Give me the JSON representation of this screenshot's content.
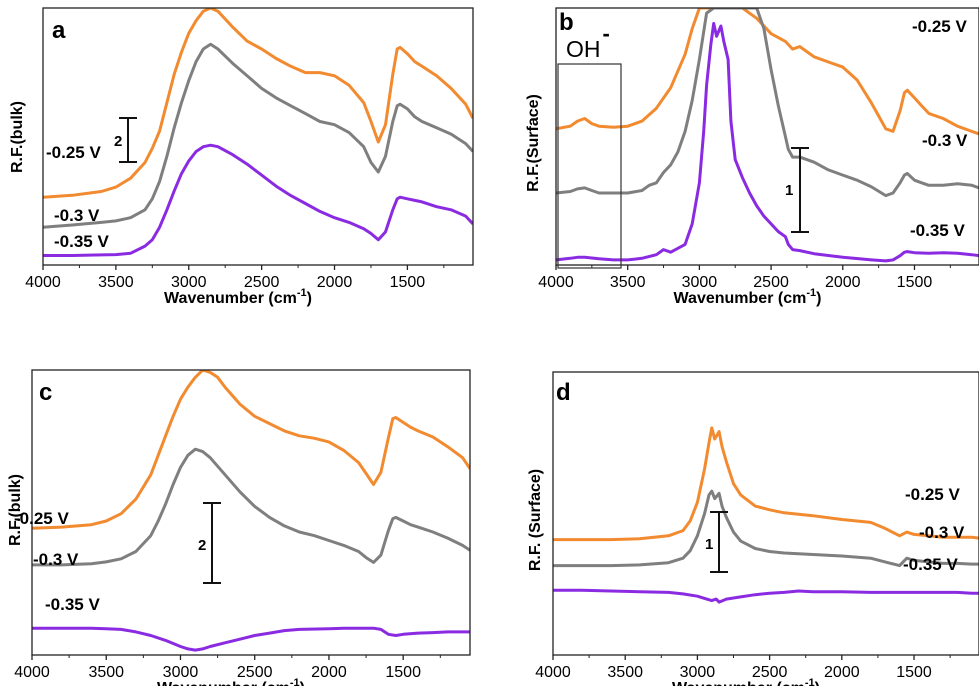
{
  "chart_data": [
    {
      "panel": "a",
      "type": "line",
      "xlabel": "Wavenumber (cm",
      "xlabel_sup": "-1",
      "xlabel_close": ")",
      "ylabel": "R.F.(bulk)",
      "xlim": [
        4000,
        1050
      ],
      "x_reversed": true,
      "xticks": [
        "4000",
        "3500",
        "3000",
        "2500",
        "2000",
        "1500"
      ],
      "scale_bar": "2",
      "series": [
        {
          "name": "-0.25 V",
          "color": "#F28A30",
          "x": [
            4000,
            3800,
            3600,
            3500,
            3400,
            3300,
            3250,
            3200,
            3150,
            3100,
            3050,
            3000,
            2950,
            2900,
            2850,
            2800,
            2700,
            2600,
            2500,
            2400,
            2300,
            2200,
            2100,
            2000,
            1900,
            1800,
            1750,
            1700,
            1650,
            1600,
            1570,
            1550,
            1500,
            1450,
            1400,
            1300,
            1200,
            1100,
            1050
          ],
          "y": [
            0.0,
            0.06,
            0.18,
            0.32,
            0.6,
            1.1,
            1.55,
            2.1,
            3.0,
            3.9,
            4.6,
            5.2,
            5.6,
            5.9,
            6.0,
            5.9,
            5.4,
            4.95,
            4.7,
            4.4,
            4.15,
            3.95,
            3.95,
            3.85,
            3.55,
            3.0,
            2.4,
            1.75,
            2.3,
            3.9,
            4.7,
            4.75,
            4.55,
            4.3,
            4.15,
            3.85,
            3.45,
            2.95,
            2.5
          ]
        },
        {
          "name": "-0.3 V",
          "color": "#7F7F7F",
          "x": [
            4000,
            3800,
            3600,
            3500,
            3400,
            3300,
            3250,
            3200,
            3150,
            3100,
            3050,
            3000,
            2950,
            2900,
            2850,
            2800,
            2700,
            2600,
            2500,
            2400,
            2300,
            2200,
            2100,
            2000,
            1900,
            1800,
            1750,
            1700,
            1650,
            1600,
            1570,
            1550,
            1500,
            1450,
            1400,
            1300,
            1200,
            1100,
            1050
          ],
          "y": [
            -0.95,
            -0.88,
            -0.8,
            -0.75,
            -0.65,
            -0.4,
            -0.05,
            0.5,
            1.3,
            2.2,
            3.0,
            3.7,
            4.3,
            4.7,
            4.85,
            4.7,
            4.25,
            3.85,
            3.45,
            3.15,
            2.9,
            2.65,
            2.4,
            2.3,
            2.05,
            1.6,
            1.1,
            0.8,
            1.3,
            2.4,
            2.9,
            2.95,
            2.8,
            2.55,
            2.4,
            2.2,
            2.0,
            1.7,
            1.45
          ]
        },
        {
          "name": "-0.35 V",
          "color": "#8A2BE2",
          "x": [
            4000,
            3800,
            3600,
            3500,
            3400,
            3300,
            3250,
            3200,
            3150,
            3100,
            3050,
            3000,
            2950,
            2900,
            2850,
            2800,
            2700,
            2600,
            2500,
            2400,
            2300,
            2200,
            2100,
            2000,
            1900,
            1800,
            1750,
            1700,
            1650,
            1600,
            1570,
            1550,
            1500,
            1450,
            1400,
            1300,
            1200,
            1100,
            1050
          ],
          "y": [
            -1.85,
            -1.85,
            -1.83,
            -1.82,
            -1.78,
            -1.55,
            -1.35,
            -0.95,
            -0.4,
            0.2,
            0.75,
            1.15,
            1.45,
            1.6,
            1.65,
            1.6,
            1.35,
            1.05,
            0.7,
            0.35,
            0.05,
            -0.2,
            -0.45,
            -0.65,
            -0.8,
            -1.0,
            -1.15,
            -1.35,
            -1.1,
            -0.4,
            -0.05,
            0.0,
            -0.05,
            -0.1,
            -0.15,
            -0.3,
            -0.4,
            -0.6,
            -0.85
          ]
        }
      ],
      "ylim": [
        -2.15,
        6.0
      ]
    },
    {
      "panel": "b",
      "type": "line",
      "xlabel": "Wavenumber (cm",
      "xlabel_sup": "-1",
      "xlabel_close": ")",
      "ylabel": "R.F.(Surface)",
      "xlim": [
        4000,
        1050
      ],
      "x_reversed": true,
      "xticks": [
        "4000",
        "3500",
        "3000",
        "2500",
        "2000",
        "1500"
      ],
      "scale_bar": "1",
      "annotation": "OH",
      "annotation_sup": "-",
      "series": [
        {
          "name": "-0.25 V",
          "color": "#F28A30",
          "x": [
            4000,
            3900,
            3850,
            3800,
            3750,
            3700,
            3600,
            3500,
            3400,
            3300,
            3200,
            3100,
            3050,
            3000,
            2900,
            2700,
            2600,
            2500,
            2400,
            2350,
            2300,
            2200,
            2100,
            2000,
            1900,
            1800,
            1700,
            1650,
            1600,
            1570,
            1550,
            1500,
            1450,
            1400,
            1300,
            1200,
            1100,
            1050
          ],
          "y": [
            1.25,
            1.3,
            1.4,
            1.45,
            1.35,
            1.3,
            1.28,
            1.3,
            1.4,
            1.65,
            2.05,
            2.7,
            3.2,
            3.6,
            3.6,
            3.6,
            3.4,
            3.1,
            2.95,
            2.8,
            2.85,
            2.65,
            2.55,
            2.45,
            2.2,
            1.75,
            1.25,
            1.2,
            1.6,
            1.95,
            2.0,
            1.85,
            1.7,
            1.55,
            1.45,
            1.3,
            1.2,
            1.15
          ]
        },
        {
          "name": "-0.3 V",
          "color": "#7F7F7F",
          "x": [
            4000,
            3900,
            3850,
            3800,
            3750,
            3700,
            3600,
            3500,
            3400,
            3350,
            3300,
            3250,
            3200,
            3150,
            3100,
            3050,
            3000,
            2950,
            2900,
            2600,
            2550,
            2500,
            2450,
            2400,
            2380,
            2350,
            2300,
            2200,
            2100,
            2000,
            1900,
            1800,
            1700,
            1650,
            1600,
            1570,
            1550,
            1500,
            1450,
            1400,
            1300,
            1200,
            1100,
            1050
          ],
          "y": [
            0.0,
            0.03,
            0.08,
            0.1,
            0.05,
            0.0,
            0.0,
            0.0,
            0.05,
            0.15,
            0.2,
            0.4,
            0.55,
            0.8,
            1.2,
            1.8,
            2.6,
            3.5,
            3.6,
            3.6,
            3.2,
            2.4,
            1.7,
            1.1,
            0.85,
            0.7,
            0.7,
            0.6,
            0.45,
            0.35,
            0.25,
            0.12,
            -0.05,
            0.0,
            0.2,
            0.35,
            0.38,
            0.25,
            0.2,
            0.15,
            0.15,
            0.18,
            0.15,
            0.1
          ]
        },
        {
          "name": "-0.35 V",
          "color": "#8A2BE2",
          "x": [
            4000,
            3900,
            3850,
            3800,
            3700,
            3600,
            3500,
            3400,
            3300,
            3250,
            3200,
            3100,
            3050,
            3000,
            2970,
            2950,
            2920,
            2900,
            2880,
            2850,
            2830,
            2800,
            2780,
            2750,
            2700,
            2650,
            2600,
            2550,
            2500,
            2450,
            2400,
            2380,
            2350,
            2300,
            2200,
            2000,
            1800,
            1700,
            1650,
            1600,
            1570,
            1550,
            1500,
            1400,
            1300,
            1200,
            1100,
            1050
          ],
          "y": [
            -1.3,
            -1.27,
            -1.25,
            -1.25,
            -1.28,
            -1.3,
            -1.3,
            -1.27,
            -1.2,
            -1.1,
            -1.15,
            -1.0,
            -0.6,
            0.2,
            1.2,
            2.1,
            2.9,
            3.3,
            3.05,
            3.25,
            2.95,
            2.6,
            1.4,
            0.65,
            0.3,
            0.0,
            -0.25,
            -0.45,
            -0.6,
            -0.75,
            -0.85,
            -1.0,
            -1.1,
            -1.12,
            -1.18,
            -1.25,
            -1.3,
            -1.32,
            -1.3,
            -1.22,
            -1.15,
            -1.14,
            -1.16,
            -1.17,
            -1.16,
            -1.17,
            -1.2,
            -1.22
          ]
        }
      ],
      "ylim": [
        -1.4,
        3.6
      ]
    },
    {
      "panel": "c",
      "type": "line",
      "xlabel": "Wavenumber (cm",
      "xlabel_sup": "-1",
      "xlabel_close": ")",
      "ylabel": "R.F.(bulk)",
      "xlim": [
        4000,
        1050
      ],
      "x_reversed": true,
      "xticks": [
        "4000",
        "3500",
        "3000",
        "2500",
        "2000",
        "1500"
      ],
      "scale_bar": "2",
      "series": [
        {
          "name": "-0.25 V",
          "color": "#F28A30",
          "x": [
            4000,
            3800,
            3600,
            3500,
            3400,
            3300,
            3200,
            3150,
            3100,
            3050,
            3000,
            2950,
            2900,
            2850,
            2800,
            2750,
            2700,
            2600,
            2500,
            2400,
            2300,
            2200,
            2100,
            2000,
            1900,
            1800,
            1750,
            1700,
            1650,
            1600,
            1570,
            1550,
            1500,
            1450,
            1400,
            1300,
            1200,
            1100,
            1050
          ],
          "y": [
            0.0,
            0.05,
            0.15,
            0.3,
            0.6,
            1.2,
            2.2,
            3.0,
            3.8,
            4.6,
            5.3,
            5.8,
            6.2,
            6.5,
            6.4,
            6.2,
            5.8,
            5.1,
            4.6,
            4.3,
            4.0,
            3.8,
            3.7,
            3.55,
            3.2,
            2.7,
            2.25,
            1.8,
            2.3,
            3.7,
            4.5,
            4.55,
            4.35,
            4.15,
            4.0,
            3.75,
            3.35,
            2.9,
            2.45
          ]
        },
        {
          "name": "-0.3 V",
          "color": "#7F7F7F",
          "x": [
            4000,
            3800,
            3600,
            3500,
            3400,
            3300,
            3200,
            3150,
            3100,
            3050,
            3000,
            2950,
            2900,
            2850,
            2800,
            2700,
            2600,
            2500,
            2400,
            2300,
            2200,
            2100,
            2000,
            1900,
            1800,
            1750,
            1700,
            1650,
            1600,
            1570,
            1550,
            1500,
            1450,
            1400,
            1300,
            1200,
            1100,
            1050
          ],
          "y": [
            -1.5,
            -1.5,
            -1.45,
            -1.38,
            -1.25,
            -0.95,
            -0.3,
            0.3,
            1.0,
            1.8,
            2.5,
            3.0,
            3.25,
            3.15,
            2.9,
            2.2,
            1.5,
            0.9,
            0.45,
            0.1,
            -0.15,
            -0.3,
            -0.5,
            -0.7,
            -0.95,
            -1.2,
            -1.4,
            -1.1,
            -0.1,
            0.4,
            0.45,
            0.3,
            0.15,
            0.05,
            -0.15,
            -0.4,
            -0.7,
            -0.9
          ]
        },
        {
          "name": "-0.35 V",
          "color": "#8A2BE2",
          "x": [
            4000,
            3800,
            3600,
            3500,
            3400,
            3300,
            3200,
            3100,
            3000,
            2950,
            2900,
            2850,
            2800,
            2700,
            2600,
            2500,
            2400,
            2300,
            2200,
            2000,
            1900,
            1800,
            1700,
            1650,
            1600,
            1550,
            1500,
            1400,
            1300,
            1200,
            1100,
            1050
          ],
          "y": [
            -4.1,
            -4.1,
            -4.1,
            -4.12,
            -4.15,
            -4.25,
            -4.4,
            -4.6,
            -4.85,
            -4.95,
            -5.0,
            -4.95,
            -4.85,
            -4.7,
            -4.55,
            -4.4,
            -4.3,
            -4.2,
            -4.15,
            -4.12,
            -4.1,
            -4.1,
            -4.1,
            -4.15,
            -4.35,
            -4.4,
            -4.35,
            -4.3,
            -4.28,
            -4.25,
            -4.25,
            -4.25
          ]
        }
      ],
      "ylim": [
        -5.2,
        6.5
      ]
    },
    {
      "panel": "d",
      "type": "line",
      "xlabel": "Wavenumber (cm",
      "xlabel_sup": "-1",
      "xlabel_close": ")",
      "ylabel": "R.F. (Surface)",
      "xlim": [
        4000,
        1050
      ],
      "x_reversed": true,
      "xticks": [
        "4000",
        "3500",
        "3000",
        "2500",
        "2000",
        "1500"
      ],
      "scale_bar": "1",
      "series": [
        {
          "name": "-0.25 V",
          "color": "#F28A30",
          "x": [
            4000,
            3800,
            3600,
            3400,
            3200,
            3100,
            3050,
            3000,
            2950,
            2920,
            2900,
            2880,
            2850,
            2830,
            2800,
            2750,
            2700,
            2600,
            2500,
            2400,
            2200,
            2000,
            1800,
            1700,
            1600,
            1550,
            1500,
            1400,
            1300,
            1200,
            1100,
            1050
          ],
          "y": [
            0.0,
            0.0,
            0.0,
            0.01,
            0.05,
            0.12,
            0.25,
            0.5,
            0.95,
            1.3,
            1.5,
            1.35,
            1.45,
            1.25,
            1.05,
            0.75,
            0.6,
            0.45,
            0.4,
            0.36,
            0.32,
            0.27,
            0.23,
            0.15,
            0.05,
            0.1,
            0.07,
            0.05,
            0.03,
            0.03,
            0.03,
            0.02
          ]
        },
        {
          "name": "-0.3 V",
          "color": "#7F7F7F",
          "x": [
            4000,
            3800,
            3600,
            3400,
            3200,
            3100,
            3050,
            3000,
            2950,
            2920,
            2900,
            2880,
            2850,
            2830,
            2800,
            2750,
            2700,
            2600,
            2500,
            2400,
            2200,
            2000,
            1800,
            1700,
            1600,
            1550,
            1500,
            1400,
            1300,
            1200,
            1100,
            1050
          ],
          "y": [
            -0.35,
            -0.35,
            -0.35,
            -0.34,
            -0.31,
            -0.25,
            -0.15,
            0.05,
            0.35,
            0.6,
            0.65,
            0.55,
            0.62,
            0.45,
            0.3,
            0.1,
            -0.02,
            -0.12,
            -0.16,
            -0.18,
            -0.2,
            -0.22,
            -0.25,
            -0.3,
            -0.35,
            -0.25,
            -0.28,
            -0.3,
            -0.32,
            -0.32,
            -0.33,
            -0.33
          ]
        },
        {
          "name": "-0.35 V",
          "color": "#8A2BE2",
          "x": [
            4000,
            3800,
            3600,
            3400,
            3200,
            3100,
            3000,
            2950,
            2900,
            2870,
            2850,
            2800,
            2700,
            2600,
            2500,
            2400,
            2300,
            2200,
            2000,
            1800,
            1600,
            1500,
            1400,
            1300,
            1200,
            1100,
            1050
          ],
          "y": [
            -0.68,
            -0.68,
            -0.69,
            -0.7,
            -0.71,
            -0.73,
            -0.76,
            -0.79,
            -0.82,
            -0.8,
            -0.84,
            -0.8,
            -0.77,
            -0.74,
            -0.72,
            -0.71,
            -0.69,
            -0.7,
            -0.7,
            -0.71,
            -0.71,
            -0.71,
            -0.71,
            -0.71,
            -0.71,
            -0.72,
            -0.72
          ]
        }
      ],
      "ylim": [
        -1.55,
        2.25
      ]
    }
  ]
}
